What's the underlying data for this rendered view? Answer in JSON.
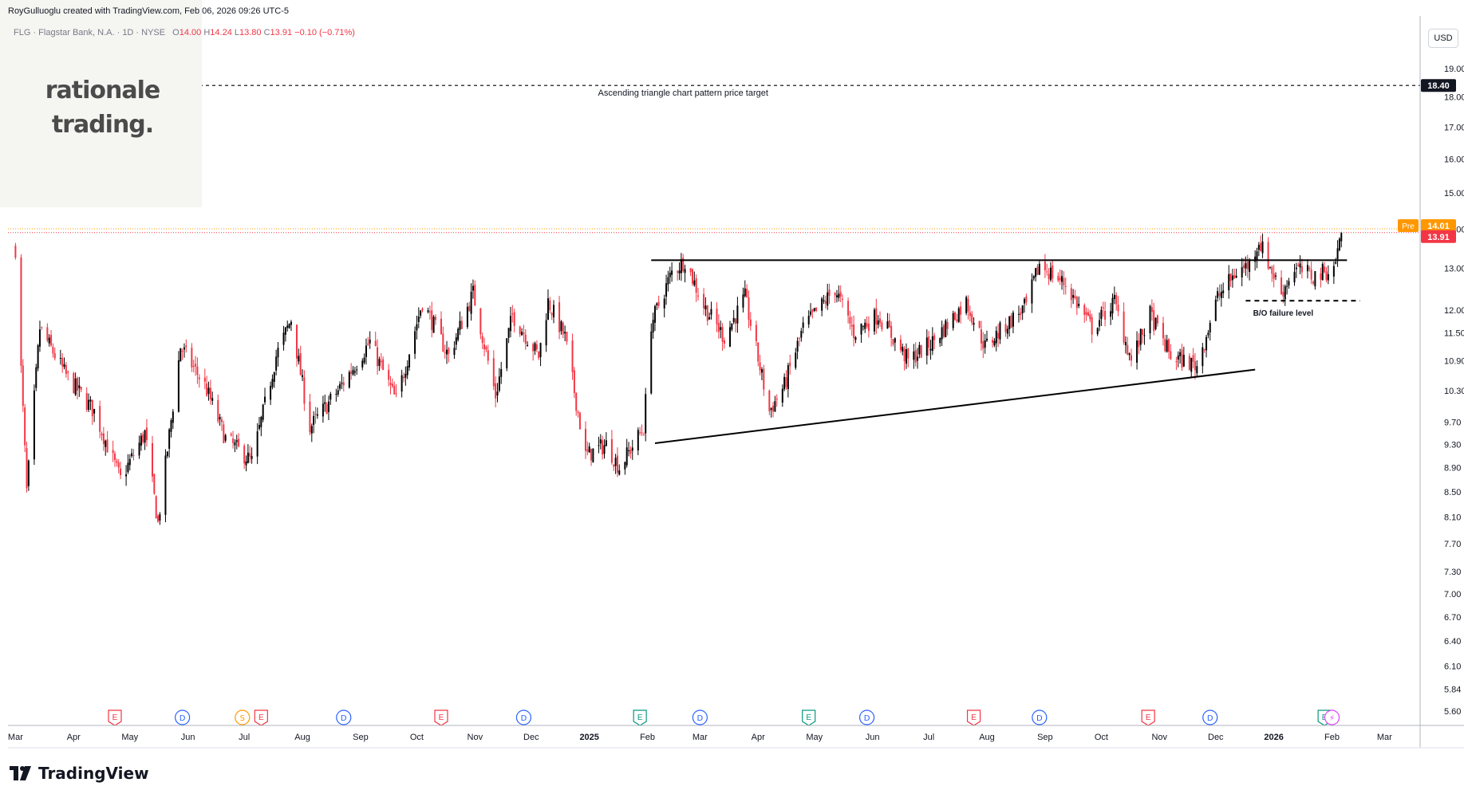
{
  "header": {
    "credit": "RoyGulluoglu created with TradingView.com, Feb 06, 2026 09:26 UTC-5",
    "symbol_line": "FLG · Flagstar Bank, N.A. · 1D · NYSE",
    "ohlc": {
      "o_label": "O",
      "o": "14.00",
      "h_label": "H",
      "h": "14.24",
      "l_label": "L",
      "l": "13.80",
      "c_label": "C",
      "c": "13.91",
      "chg": "−0.10 (−0.71%)"
    }
  },
  "logo": {
    "line1": "rationale",
    "line2": "trading."
  },
  "footer_brand": "TradingView",
  "currency_button": "USD",
  "colors": {
    "up": "#000000",
    "down": "#f23645",
    "grid": "#f0f3fa",
    "axis_text": "#131722",
    "price_tag": "#f23645",
    "pre_tag": "#ff9800"
  },
  "chart_data": {
    "type": "candlestick",
    "scale": "log",
    "ylim": [
      5.45,
      21.0
    ],
    "y_ticks": [
      "19.00",
      "18.00",
      "17.00",
      "16.00",
      "15.00",
      "14.00",
      "13.00",
      "12.00",
      "11.50",
      "10.90",
      "10.30",
      "9.70",
      "9.30",
      "8.90",
      "8.50",
      "8.10",
      "7.70",
      "7.30",
      "7.00",
      "6.70",
      "6.40",
      "6.10",
      "5.84",
      "5.60"
    ],
    "x_ticks": [
      "Mar",
      "Apr",
      "May",
      "Jun",
      "Jul",
      "Aug",
      "Sep",
      "Oct",
      "Nov",
      "Dec",
      "2025",
      "Feb",
      "Mar",
      "Apr",
      "May",
      "Jun",
      "Jul",
      "Aug",
      "Sep",
      "Oct",
      "Nov",
      "Dec",
      "2026",
      "Feb",
      "Mar"
    ],
    "anchors": [
      {
        "d": "2024-03-01",
        "p": 13.5
      },
      {
        "d": "2024-03-07",
        "p": 8.5
      },
      {
        "d": "2024-03-14",
        "p": 11.6
      },
      {
        "d": "2024-03-28",
        "p": 10.6
      },
      {
        "d": "2024-04-12",
        "p": 9.9
      },
      {
        "d": "2024-04-26",
        "p": 8.7
      },
      {
        "d": "2024-05-09",
        "p": 9.5
      },
      {
        "d": "2024-05-16",
        "p": 8.0
      },
      {
        "d": "2024-05-28",
        "p": 11.2
      },
      {
        "d": "2024-06-10",
        "p": 10.4
      },
      {
        "d": "2024-06-21",
        "p": 9.4
      },
      {
        "d": "2024-07-05",
        "p": 9.0
      },
      {
        "d": "2024-07-18",
        "p": 11.0
      },
      {
        "d": "2024-07-26",
        "p": 11.8
      },
      {
        "d": "2024-08-05",
        "p": 9.6
      },
      {
        "d": "2024-08-20",
        "p": 10.3
      },
      {
        "d": "2024-09-06",
        "p": 11.3
      },
      {
        "d": "2024-09-20",
        "p": 10.1
      },
      {
        "d": "2024-10-04",
        "p": 12.2
      },
      {
        "d": "2024-10-18",
        "p": 11.0
      },
      {
        "d": "2024-10-31",
        "p": 12.4
      },
      {
        "d": "2024-11-12",
        "p": 10.2
      },
      {
        "d": "2024-11-21",
        "p": 11.9
      },
      {
        "d": "2024-12-05",
        "p": 11.0
      },
      {
        "d": "2024-12-10",
        "p": 12.2
      },
      {
        "d": "2024-12-19",
        "p": 11.4
      },
      {
        "d": "2024-12-30",
        "p": 9.1
      },
      {
        "d": "2025-01-10",
        "p": 9.3
      },
      {
        "d": "2025-01-17",
        "p": 8.9
      },
      {
        "d": "2025-01-30",
        "p": 9.6
      },
      {
        "d": "2025-02-03",
        "p": 11.7
      },
      {
        "d": "2025-02-14",
        "p": 12.9
      },
      {
        "d": "2025-02-21",
        "p": 13.2
      },
      {
        "d": "2025-03-03",
        "p": 12.1
      },
      {
        "d": "2025-03-14",
        "p": 11.4
      },
      {
        "d": "2025-03-25",
        "p": 12.3
      },
      {
        "d": "2025-04-07",
        "p": 9.9
      },
      {
        "d": "2025-04-15",
        "p": 10.4
      },
      {
        "d": "2025-04-25",
        "p": 11.6
      },
      {
        "d": "2025-05-12",
        "p": 12.5
      },
      {
        "d": "2025-05-22",
        "p": 11.5
      },
      {
        "d": "2025-06-04",
        "p": 11.9
      },
      {
        "d": "2025-06-20",
        "p": 10.9
      },
      {
        "d": "2025-07-03",
        "p": 11.3
      },
      {
        "d": "2025-07-21",
        "p": 12.2
      },
      {
        "d": "2025-07-31",
        "p": 11.2
      },
      {
        "d": "2025-08-12",
        "p": 11.7
      },
      {
        "d": "2025-08-22",
        "p": 12.1
      },
      {
        "d": "2025-08-29",
        "p": 13.1
      },
      {
        "d": "2025-09-12",
        "p": 12.6
      },
      {
        "d": "2025-09-26",
        "p": 11.6
      },
      {
        "d": "2025-10-08",
        "p": 12.2
      },
      {
        "d": "2025-10-17",
        "p": 10.9
      },
      {
        "d": "2025-10-27",
        "p": 11.9
      },
      {
        "d": "2025-11-07",
        "p": 11.0
      },
      {
        "d": "2025-11-21",
        "p": 10.8
      },
      {
        "d": "2025-12-02",
        "p": 12.3
      },
      {
        "d": "2025-12-12",
        "p": 12.9
      },
      {
        "d": "2025-12-19",
        "p": 13.1
      },
      {
        "d": "2025-12-24",
        "p": 13.7
      },
      {
        "d": "2026-01-05",
        "p": 12.4
      },
      {
        "d": "2026-01-12",
        "p": 13.0
      },
      {
        "d": "2026-01-22",
        "p": 12.8
      },
      {
        "d": "2026-02-02",
        "p": 13.0
      },
      {
        "d": "2026-02-06",
        "p": 13.91
      }
    ],
    "lines": [
      {
        "name": "resistance",
        "style": "solid",
        "points": [
          {
            "d": "2025-02-03",
            "p": 13.2
          },
          {
            "d": "2026-02-09",
            "p": 13.2
          }
        ]
      },
      {
        "name": "support",
        "style": "solid",
        "points": [
          {
            "d": "2025-02-05",
            "p": 9.32
          },
          {
            "d": "2025-12-22",
            "p": 10.72
          }
        ]
      },
      {
        "name": "bo-failure",
        "style": "dashed",
        "points": [
          {
            "d": "2025-12-17",
            "p": 12.22
          },
          {
            "d": "2026-02-16",
            "p": 12.22
          }
        ]
      },
      {
        "name": "price-target",
        "style": "dashed",
        "points": [
          {
            "d": "2024-02-26",
            "p": 18.4
          },
          {
            "d": "2026-03-20",
            "p": 18.4
          }
        ]
      }
    ],
    "annotations": [
      {
        "text": "Ascending triangle chart pattern price target",
        "d": "2025-02-20",
        "p": 18.05
      },
      {
        "text": "B/O failure level",
        "d": "2026-01-06",
        "p": 11.88
      }
    ],
    "price_tags": [
      {
        "label": "",
        "value": "18.40",
        "p": 18.4,
        "kind": "target"
      },
      {
        "label": "Pre",
        "value": "14.01",
        "p": 14.01,
        "kind": "pre"
      },
      {
        "label": "",
        "value": "13.91",
        "p": 13.91,
        "kind": "last"
      }
    ],
    "events": [
      {
        "d": "2024-04-23",
        "t": "E"
      },
      {
        "d": "2024-05-29",
        "t": "D"
      },
      {
        "d": "2024-06-30",
        "t": "S"
      },
      {
        "d": "2024-07-10",
        "t": "E"
      },
      {
        "d": "2024-08-23",
        "t": "D"
      },
      {
        "d": "2024-10-14",
        "t": "E"
      },
      {
        "d": "2024-11-27",
        "t": "D"
      },
      {
        "d": "2025-01-28",
        "t": "E"
      },
      {
        "d": "2025-03-01",
        "t": "D"
      },
      {
        "d": "2025-04-28",
        "t": "E"
      },
      {
        "d": "2025-05-29",
        "t": "D"
      },
      {
        "d": "2025-07-25",
        "t": "E"
      },
      {
        "d": "2025-08-29",
        "t": "D"
      },
      {
        "d": "2025-10-26",
        "t": "E"
      },
      {
        "d": "2025-11-28",
        "t": "D"
      },
      {
        "d": "2026-01-28",
        "t": "E"
      },
      {
        "d": "2026-02-01",
        "t": "⚡"
      }
    ],
    "grid": false,
    "legend": "none"
  }
}
